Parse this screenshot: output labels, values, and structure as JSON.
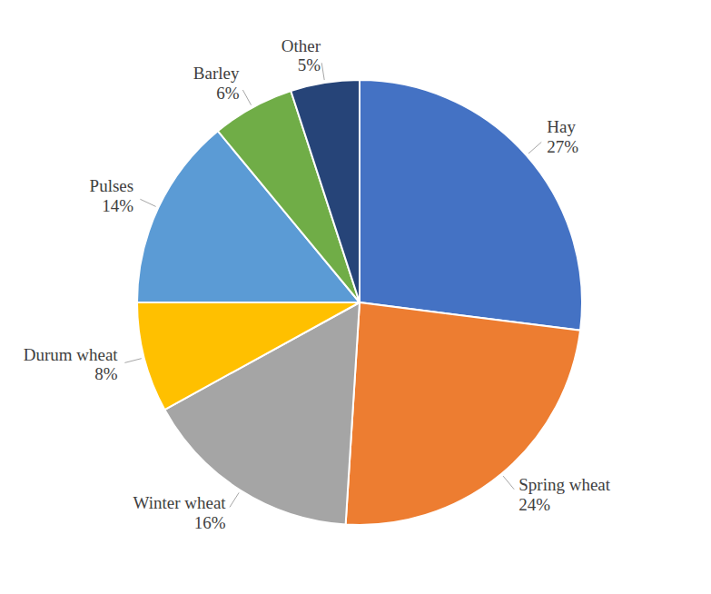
{
  "chart_data": {
    "type": "pie",
    "categories": [
      "Hay",
      "Spring wheat",
      "Winter wheat",
      "Durum wheat",
      "Pulses",
      "Barley",
      "Other"
    ],
    "values": [
      27,
      24,
      16,
      8,
      14,
      6,
      5
    ],
    "value_labels": [
      "27%",
      "24%",
      "16%",
      "8%",
      "14%",
      "6%",
      "5%"
    ],
    "colors": [
      "#4472c4",
      "#ed7d31",
      "#a5a5a5",
      "#ffc000",
      "#5b9bd5",
      "#70ad47",
      "#264478"
    ],
    "data_labels": true
  }
}
